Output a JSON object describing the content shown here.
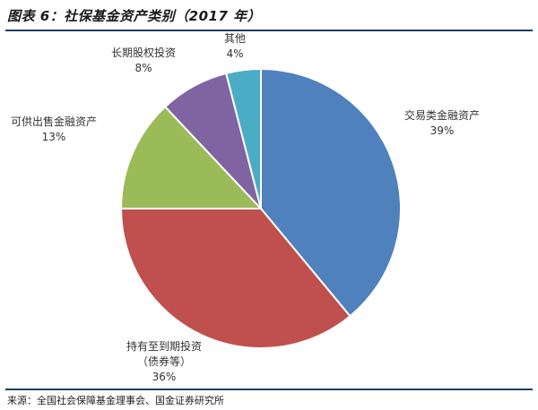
{
  "title": "图表 6：社保基金资产类别（2017 年）",
  "source": "来源：全国社会保障基金理事会、国金证券研究所",
  "colors": {
    "rule": "#1f3e63",
    "slice_border": "#ffffff"
  },
  "chart_data": {
    "type": "pie",
    "title": "",
    "start": "12 o'clock",
    "direction": "clockwise",
    "slices": [
      {
        "label": [
          "交易类金融资产"
        ],
        "value": 39,
        "value_label": "39%",
        "color": "#4f81bd"
      },
      {
        "label": [
          "持有至到期投资",
          "（债券等）"
        ],
        "value": 36,
        "value_label": "36%",
        "color": "#c0504d"
      },
      {
        "label": [
          "可供出售金融资产"
        ],
        "value": 13,
        "value_label": "13%",
        "color": "#9bbb59"
      },
      {
        "label": [
          "长期股权投资"
        ],
        "value": 8,
        "value_label": "8%",
        "color": "#8064a2"
      },
      {
        "label": [
          "其他"
        ],
        "value": 4,
        "value_label": "4%",
        "color": "#4bacc6"
      }
    ]
  }
}
